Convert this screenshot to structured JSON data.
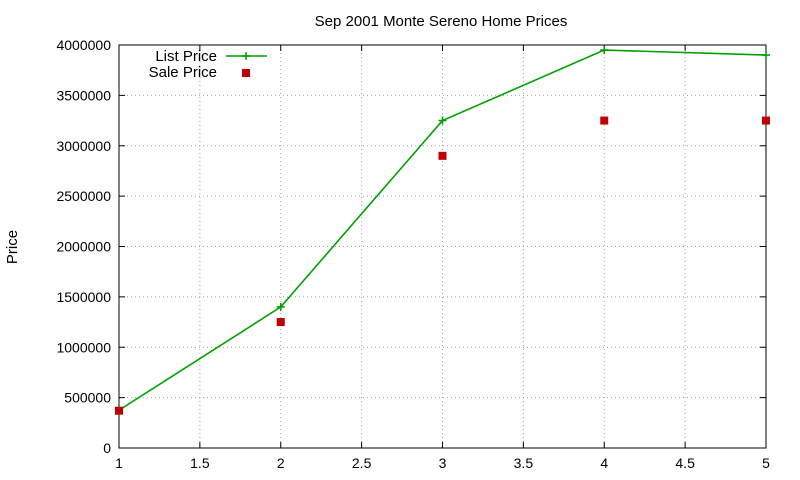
{
  "chart_data": {
    "type": "line",
    "title": "Sep 2001 Monte Sereno Home Prices",
    "xlabel": "",
    "ylabel": "Price",
    "x": [
      1,
      2,
      3,
      4,
      5
    ],
    "xlim": [
      1,
      5
    ],
    "ylim": [
      0,
      4000000
    ],
    "xticks": [
      "1",
      "1.5",
      "2",
      "2.5",
      "3",
      "3.5",
      "4",
      "4.5",
      "5"
    ],
    "yticks": [
      "0",
      "500000",
      "1000000",
      "1500000",
      "2000000",
      "2500000",
      "3000000",
      "3500000",
      "4000000"
    ],
    "grid": true,
    "legend_position": "top-left",
    "series": [
      {
        "name": "List Price",
        "style": "linespoints",
        "marker": "plus",
        "color": "#00a000",
        "values": [
          375000,
          1400000,
          3250000,
          3950000,
          3900000
        ]
      },
      {
        "name": "Sale Price",
        "style": "points",
        "marker": "square",
        "color": "#c00000",
        "values": [
          370000,
          1250000,
          2900000,
          3250000,
          3250000
        ]
      }
    ]
  }
}
